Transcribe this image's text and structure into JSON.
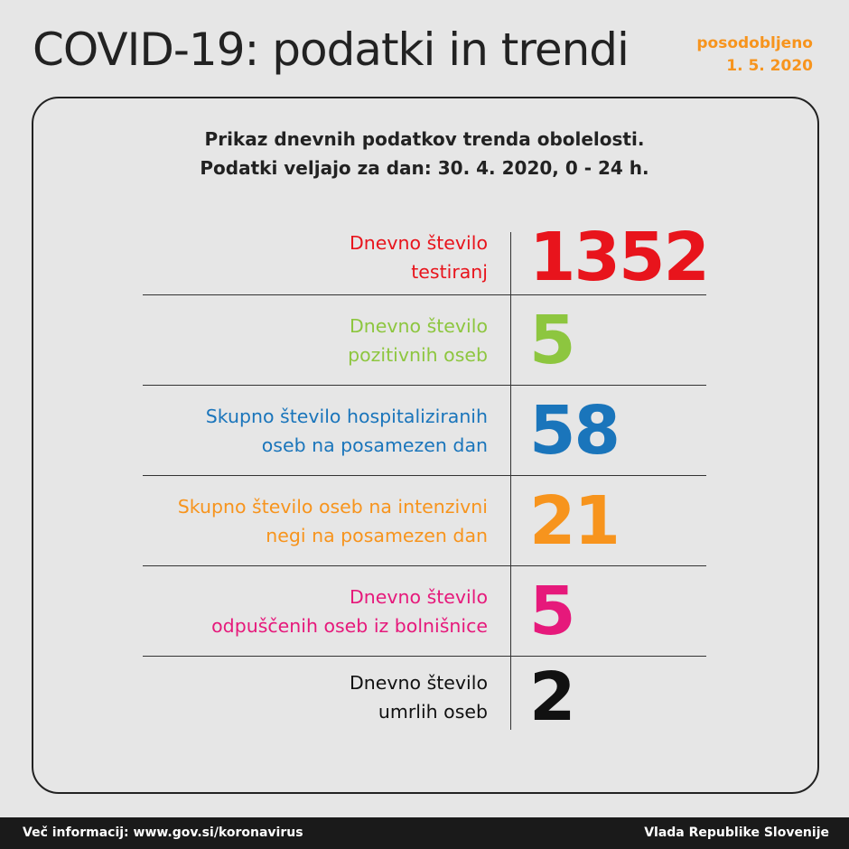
{
  "header": {
    "title": "COVID-19: podatki in trendi",
    "updated_label": "posodobljeno",
    "updated_date": "1. 5. 2020"
  },
  "subtitle": {
    "line1": "Prikaz dnevnih podatkov trenda obolelosti.",
    "line2": "Podatki veljajo za dan: 30. 4. 2020, 0 - 24 h."
  },
  "rows": [
    {
      "line1": "Dnevno število",
      "line2": "testiranj",
      "value": "1352",
      "color": "#e8141c"
    },
    {
      "line1": "Dnevno število",
      "line2": "pozitivnih oseb",
      "value": "5",
      "color": "#8dc63f"
    },
    {
      "line1": "Skupno število hospitaliziranih",
      "line2": "oseb na posamezen dan",
      "value": "58",
      "color": "#1a75bb"
    },
    {
      "line1": "Skupno število oseb na intenzivni",
      "line2": "negi na posamezen dan",
      "value": "21",
      "color": "#f7941d"
    },
    {
      "line1": "Dnevno število",
      "line2": "odpuščenih oseb iz bolnišnice",
      "value": "5",
      "color": "#e6197b"
    },
    {
      "line1": "Dnevno število",
      "line2": "umrlih oseb",
      "value": "2",
      "color": "#111111"
    }
  ],
  "footer": {
    "left": "Več informacij: www.gov.si/koronavirus",
    "right": "Vlada Republike Slovenije"
  }
}
